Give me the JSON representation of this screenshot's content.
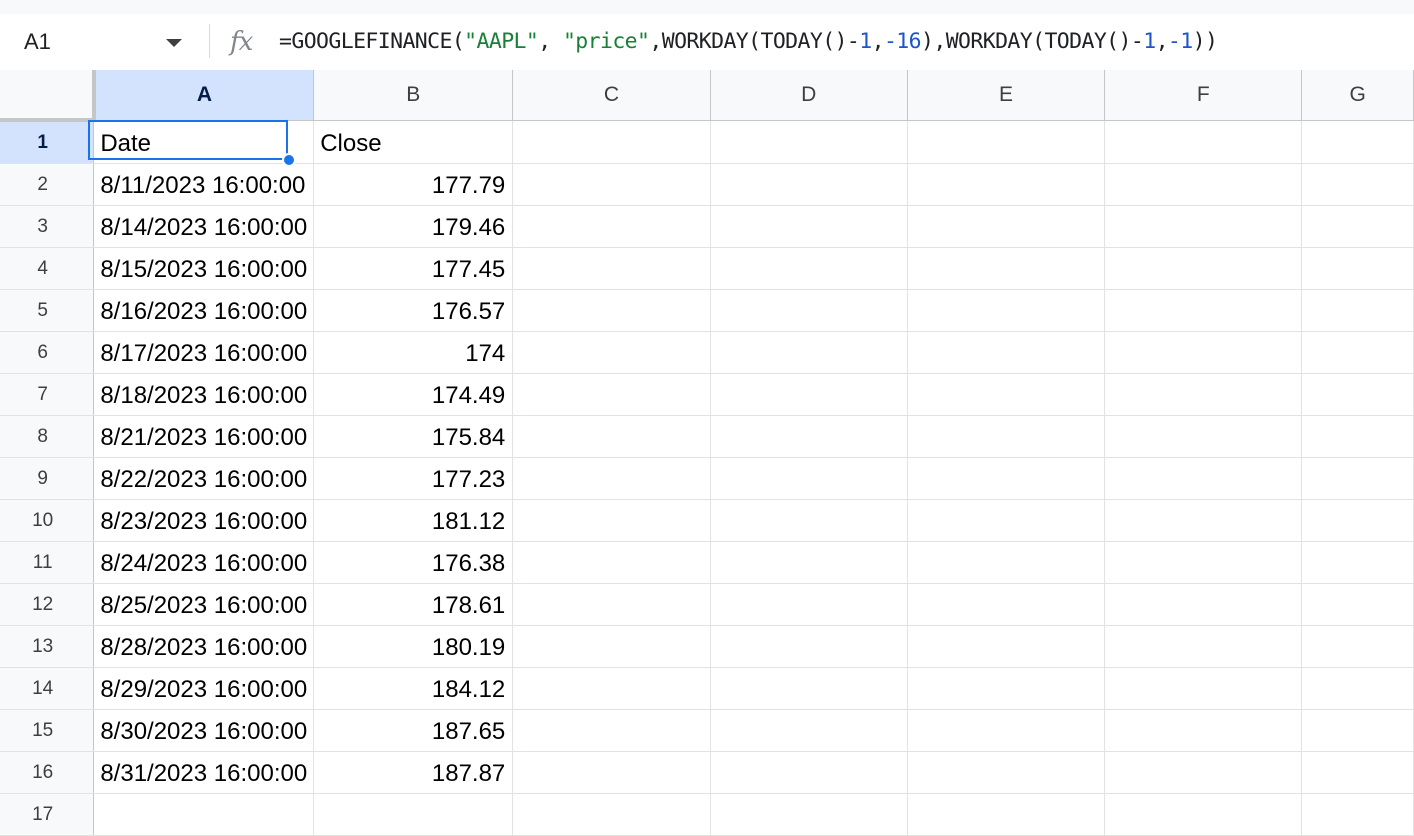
{
  "formula_bar": {
    "cell_ref": "A1",
    "fx_label": "fx",
    "formula_parts": [
      {
        "text": "=GOOGLEFINANCE(",
        "kind": "plain"
      },
      {
        "text": "\"AAPL\"",
        "kind": "str"
      },
      {
        "text": ", ",
        "kind": "plain"
      },
      {
        "text": "\"price\"",
        "kind": "str"
      },
      {
        "text": ",WORKDAY(TODAY()-",
        "kind": "plain"
      },
      {
        "text": "1",
        "kind": "num"
      },
      {
        "text": ",",
        "kind": "plain"
      },
      {
        "text": "-16",
        "kind": "num"
      },
      {
        "text": "),WORKDAY(TODAY()-",
        "kind": "plain"
      },
      {
        "text": "1",
        "kind": "num"
      },
      {
        "text": ",",
        "kind": "plain"
      },
      {
        "text": "-1",
        "kind": "num"
      },
      {
        "text": "))",
        "kind": "plain"
      }
    ]
  },
  "sheet": {
    "columns": [
      "A",
      "B",
      "C",
      "D",
      "E",
      "F",
      "G"
    ],
    "active_column": "A",
    "active_row": "1",
    "rows": [
      {
        "num": "1",
        "a": "Date",
        "b": "Close"
      },
      {
        "num": "2",
        "a": "8/11/2023 16:00:00",
        "b": "177.79"
      },
      {
        "num": "3",
        "a": "8/14/2023 16:00:00",
        "b": "179.46"
      },
      {
        "num": "4",
        "a": "8/15/2023 16:00:00",
        "b": "177.45"
      },
      {
        "num": "5",
        "a": "8/16/2023 16:00:00",
        "b": "176.57"
      },
      {
        "num": "6",
        "a": "8/17/2023 16:00:00",
        "b": "174"
      },
      {
        "num": "7",
        "a": "8/18/2023 16:00:00",
        "b": "174.49"
      },
      {
        "num": "8",
        "a": "8/21/2023 16:00:00",
        "b": "175.84"
      },
      {
        "num": "9",
        "a": "8/22/2023 16:00:00",
        "b": "177.23"
      },
      {
        "num": "10",
        "a": "8/23/2023 16:00:00",
        "b": "181.12"
      },
      {
        "num": "11",
        "a": "8/24/2023 16:00:00",
        "b": "176.38"
      },
      {
        "num": "12",
        "a": "8/25/2023 16:00:00",
        "b": "178.61"
      },
      {
        "num": "13",
        "a": "8/28/2023 16:00:00",
        "b": "180.19"
      },
      {
        "num": "14",
        "a": "8/29/2023 16:00:00",
        "b": "184.12"
      },
      {
        "num": "15",
        "a": "8/30/2023 16:00:00",
        "b": "187.65"
      },
      {
        "num": "16",
        "a": "8/31/2023 16:00:00",
        "b": "187.87"
      },
      {
        "num": "17",
        "a": "",
        "b": ""
      }
    ]
  }
}
